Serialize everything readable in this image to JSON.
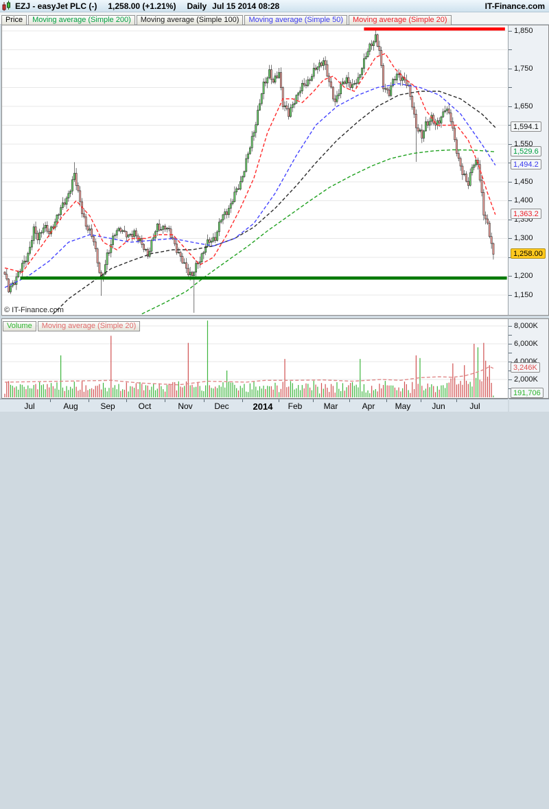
{
  "title_bar": {
    "symbol": "EZJ - easyJet PLC (-)",
    "quote": "1,258.00 (+1.21%)",
    "timeframe": "Daily",
    "datetime": "Jul 15 2014 08:28",
    "brand": "IT-Finance.com"
  },
  "watermark": "© IT-Finance.com",
  "price_legend": [
    {
      "label": "Price",
      "color": "#000000"
    },
    {
      "label": "Moving average (Simple 200)",
      "color": "#009f40"
    },
    {
      "label": "Moving average (Simple 100)",
      "color": "#1a1a1a"
    },
    {
      "label": "Moving average (Simple 50)",
      "color": "#3838ee"
    },
    {
      "label": "Moving average (Simple 20)",
      "color": "#ee1c25"
    }
  ],
  "volume_legend": [
    {
      "label": "Volume",
      "color": "#2db52d"
    },
    {
      "label": "Moving average (Simple 20)",
      "color": "#e06a6a"
    }
  ],
  "chart_data": {
    "type": "candlestick",
    "symbol": "EZJ",
    "title": "easyJet PLC Daily",
    "last_close": 1258.0,
    "change_pct": 1.21,
    "price_axis": {
      "range": [
        1095,
        1875
      ],
      "tick_step": 50,
      "labeled_ticks": [
        {
          "v": 1850,
          "t": "1,850"
        },
        {
          "v": 1750,
          "t": "1,750"
        },
        {
          "v": 1650,
          "t": "1,650"
        },
        {
          "v": 1550,
          "t": "1,550"
        },
        {
          "v": 1450,
          "t": "1,450"
        },
        {
          "v": 1400,
          "t": "1,400"
        },
        {
          "v": 1350,
          "t": "1,350"
        },
        {
          "v": 1300,
          "t": "1,300"
        },
        {
          "v": 1200,
          "t": "1,200"
        },
        {
          "v": 1150,
          "t": "1,150"
        }
      ],
      "ma_value_boxes": [
        {
          "v": 1594.1,
          "t": "1,594.1",
          "color": "#111111"
        },
        {
          "v": 1529.6,
          "t": "1,529.6",
          "color": "#009f40"
        },
        {
          "v": 1494.2,
          "t": "1,494.2",
          "color": "#3838ee"
        },
        {
          "v": 1363.2,
          "t": "1,363.2",
          "color": "#ee1c25"
        }
      ],
      "last_price_box": {
        "v": 1258,
        "t": "1,258.00"
      }
    },
    "volume_axis": {
      "range": [
        0,
        9000
      ],
      "tick_step": 1000,
      "labeled_ticks": [
        {
          "v": 8000,
          "t": "8,000K"
        },
        {
          "v": 6000,
          "t": "6,000K"
        },
        {
          "v": 4000,
          "t": "4,000K"
        },
        {
          "v": 2000,
          "t": "2,000K"
        }
      ],
      "value_boxes": [
        {
          "v": 3246,
          "t": "3,246K",
          "color": "#e05050"
        },
        {
          "v": 192,
          "t": "191,706",
          "color": "#2db52d"
        }
      ]
    },
    "x_axis": {
      "labels": [
        "Jul",
        "Aug",
        "Sep",
        "Oct",
        "Nov",
        "Dec",
        "2014",
        "Feb",
        "Mar",
        "Apr",
        "May",
        "Jun",
        "Jul"
      ],
      "bold_label": "2014",
      "centers_day": [
        13.5,
        34.5,
        54,
        73,
        94,
        113,
        134,
        151,
        169.5,
        189,
        206.5,
        225,
        244
      ],
      "tick_days": [
        24,
        44,
        63.5,
        83.5,
        103.5,
        123.5,
        142.5,
        160,
        179,
        198,
        216,
        234.5
      ]
    },
    "support_line": {
      "price": 1195,
      "color": "#007a00",
      "day_start": 8,
      "day_end": 260
    },
    "resistance_line": {
      "price": 1855,
      "color": "#ff0000",
      "day_start": 186,
      "day_end": 259
    },
    "days": 253,
    "close_path": [
      [
        0,
        1205
      ],
      [
        2,
        1160
      ],
      [
        5,
        1190
      ],
      [
        9,
        1225
      ],
      [
        12,
        1260
      ],
      [
        15,
        1320
      ],
      [
        17,
        1300
      ],
      [
        20,
        1335
      ],
      [
        23,
        1310
      ],
      [
        26,
        1350
      ],
      [
        30,
        1385
      ],
      [
        33,
        1420
      ],
      [
        36,
        1465
      ],
      [
        39,
        1400
      ],
      [
        42,
        1330
      ],
      [
        46,
        1300
      ],
      [
        48,
        1240
      ],
      [
        50,
        1180
      ],
      [
        53,
        1260
      ],
      [
        57,
        1310
      ],
      [
        60,
        1330
      ],
      [
        64,
        1300
      ],
      [
        67,
        1320
      ],
      [
        71,
        1280
      ],
      [
        74,
        1260
      ],
      [
        79,
        1330
      ],
      [
        83,
        1330
      ],
      [
        87,
        1300
      ],
      [
        91,
        1245
      ],
      [
        95,
        1215
      ],
      [
        97,
        1200
      ],
      [
        100,
        1235
      ],
      [
        104,
        1280
      ],
      [
        109,
        1305
      ],
      [
        112,
        1350
      ],
      [
        117,
        1390
      ],
      [
        122,
        1450
      ],
      [
        126,
        1520
      ],
      [
        130,
        1610
      ],
      [
        134,
        1705
      ],
      [
        137,
        1745
      ],
      [
        139,
        1710
      ],
      [
        142,
        1740
      ],
      [
        144,
        1660
      ],
      [
        147,
        1625
      ],
      [
        150,
        1670
      ],
      [
        154,
        1700
      ],
      [
        158,
        1725
      ],
      [
        162,
        1755
      ],
      [
        165,
        1775
      ],
      [
        168,
        1710
      ],
      [
        171,
        1665
      ],
      [
        174,
        1700
      ],
      [
        177,
        1725
      ],
      [
        180,
        1700
      ],
      [
        183,
        1720
      ],
      [
        185,
        1760
      ],
      [
        189,
        1805
      ],
      [
        192,
        1838
      ],
      [
        194,
        1795
      ],
      [
        196,
        1700
      ],
      [
        199,
        1690
      ],
      [
        201,
        1715
      ],
      [
        204,
        1735
      ],
      [
        207,
        1720
      ],
      [
        209,
        1695
      ],
      [
        211,
        1655
      ],
      [
        213,
        1600
      ],
      [
        216,
        1565
      ],
      [
        218,
        1605
      ],
      [
        221,
        1620
      ],
      [
        223,
        1595
      ],
      [
        226,
        1625
      ],
      [
        228,
        1645
      ],
      [
        231,
        1615
      ],
      [
        233,
        1565
      ],
      [
        235,
        1505
      ],
      [
        237,
        1470
      ],
      [
        240,
        1450
      ],
      [
        242,
        1490
      ],
      [
        245,
        1500
      ],
      [
        247,
        1420
      ],
      [
        248,
        1370
      ],
      [
        250,
        1330
      ],
      [
        252,
        1285
      ],
      [
        253,
        1258
      ]
    ],
    "wick_overrides": {
      "high": {
        "36": 1502,
        "192": 1856
      },
      "low": {
        "50": 1148,
        "98": 1103,
        "213": 1503
      }
    },
    "ma20_path": [
      [
        0,
        1222
      ],
      [
        9,
        1210
      ],
      [
        19,
        1280
      ],
      [
        30,
        1360
      ],
      [
        37,
        1400
      ],
      [
        44,
        1360
      ],
      [
        51,
        1290
      ],
      [
        58,
        1270
      ],
      [
        65,
        1300
      ],
      [
        73,
        1300
      ],
      [
        80,
        1310
      ],
      [
        87,
        1310
      ],
      [
        94,
        1270
      ],
      [
        101,
        1230
      ],
      [
        108,
        1250
      ],
      [
        115,
        1310
      ],
      [
        122,
        1380
      ],
      [
        129,
        1460
      ],
      [
        136,
        1580
      ],
      [
        144,
        1670
      ],
      [
        149,
        1670
      ],
      [
        154,
        1660
      ],
      [
        160,
        1690
      ],
      [
        165,
        1720
      ],
      [
        170,
        1730
      ],
      [
        176,
        1700
      ],
      [
        181,
        1690
      ],
      [
        186,
        1730
      ],
      [
        192,
        1780
      ],
      [
        197,
        1790
      ],
      [
        202,
        1750
      ],
      [
        208,
        1720
      ],
      [
        213,
        1700
      ],
      [
        218,
        1640
      ],
      [
        224,
        1600
      ],
      [
        229,
        1600
      ],
      [
        234,
        1600
      ],
      [
        240,
        1560
      ],
      [
        245,
        1500
      ],
      [
        250,
        1420
      ],
      [
        254,
        1363.2
      ]
    ],
    "ma50_path": [
      [
        0,
        1170
      ],
      [
        12,
        1200
      ],
      [
        23,
        1240
      ],
      [
        33,
        1290
      ],
      [
        44,
        1310
      ],
      [
        55,
        1300
      ],
      [
        65,
        1290
      ],
      [
        76,
        1295
      ],
      [
        87,
        1300
      ],
      [
        97,
        1290
      ],
      [
        108,
        1280
      ],
      [
        119,
        1300
      ],
      [
        129,
        1340
      ],
      [
        140,
        1420
      ],
      [
        151,
        1520
      ],
      [
        161,
        1600
      ],
      [
        172,
        1650
      ],
      [
        183,
        1680
      ],
      [
        193,
        1700
      ],
      [
        204,
        1710
      ],
      [
        215,
        1700
      ],
      [
        225,
        1680
      ],
      [
        236,
        1630
      ],
      [
        247,
        1550
      ],
      [
        254,
        1494.2
      ]
    ],
    "ma100_path": [
      [
        25,
        1100
      ],
      [
        33,
        1140
      ],
      [
        44,
        1180
      ],
      [
        55,
        1220
      ],
      [
        65,
        1240
      ],
      [
        76,
        1260
      ],
      [
        87,
        1270
      ],
      [
        97,
        1270
      ],
      [
        108,
        1280
      ],
      [
        119,
        1300
      ],
      [
        129,
        1330
      ],
      [
        140,
        1380
      ],
      [
        151,
        1440
      ],
      [
        161,
        1500
      ],
      [
        172,
        1560
      ],
      [
        183,
        1610
      ],
      [
        193,
        1650
      ],
      [
        204,
        1680
      ],
      [
        215,
        1690
      ],
      [
        225,
        1690
      ],
      [
        236,
        1670
      ],
      [
        247,
        1630
      ],
      [
        254,
        1594.1
      ]
    ],
    "ma200_path": [
      [
        71,
        1100
      ],
      [
        83,
        1130
      ],
      [
        94,
        1160
      ],
      [
        104,
        1200
      ],
      [
        115,
        1240
      ],
      [
        126,
        1280
      ],
      [
        136,
        1320
      ],
      [
        147,
        1360
      ],
      [
        158,
        1400
      ],
      [
        168,
        1435
      ],
      [
        179,
        1465
      ],
      [
        190,
        1492
      ],
      [
        200,
        1512
      ],
      [
        211,
        1525
      ],
      [
        222,
        1532
      ],
      [
        232,
        1535
      ],
      [
        243,
        1534
      ],
      [
        254,
        1529.6
      ]
    ],
    "volume_ma_path": [
      [
        0,
        1700
      ],
      [
        30,
        1800
      ],
      [
        55,
        1900
      ],
      [
        70,
        1600
      ],
      [
        90,
        1400
      ],
      [
        105,
        1800
      ],
      [
        125,
        1700
      ],
      [
        135,
        1900
      ],
      [
        150,
        1900
      ],
      [
        165,
        1950
      ],
      [
        180,
        1800
      ],
      [
        195,
        2000
      ],
      [
        205,
        1900
      ],
      [
        215,
        2200
      ],
      [
        225,
        2300
      ],
      [
        232,
        2250
      ],
      [
        238,
        2400
      ],
      [
        243,
        2700
      ],
      [
        248,
        3100
      ],
      [
        251,
        3450
      ],
      [
        253,
        3246
      ]
    ],
    "volume_spikes": [
      [
        29,
        4700,
        "g"
      ],
      [
        55,
        6900,
        "r"
      ],
      [
        95,
        6100,
        "r"
      ],
      [
        105,
        8600,
        "g"
      ],
      [
        115,
        3000,
        "g"
      ],
      [
        145,
        4300,
        "r"
      ],
      [
        184,
        4300,
        "g"
      ],
      [
        213,
        4700,
        "r"
      ],
      [
        215,
        4400,
        "g"
      ],
      [
        232,
        3800,
        "r"
      ],
      [
        238,
        3600,
        "r"
      ],
      [
        243,
        6000,
        "r"
      ],
      [
        245,
        5600,
        "g"
      ],
      [
        248,
        6100,
        "r"
      ],
      [
        249,
        4100,
        "r"
      ],
      [
        251,
        3600,
        "r"
      ],
      [
        253,
        192,
        "g"
      ]
    ],
    "colors": {
      "up_body": "#6fd66f",
      "down_body": "#f2a49e",
      "candle_stroke": "#1a1a1a",
      "vol_up": "#3db53d",
      "vol_down": "#d05050",
      "vol_ma": "#e08888",
      "ma20": "#ff2a2a",
      "ma50": "#4444ff",
      "ma100": "#2a2a2a",
      "ma200": "#1fa11f",
      "grid": "#e7e7e7"
    }
  }
}
